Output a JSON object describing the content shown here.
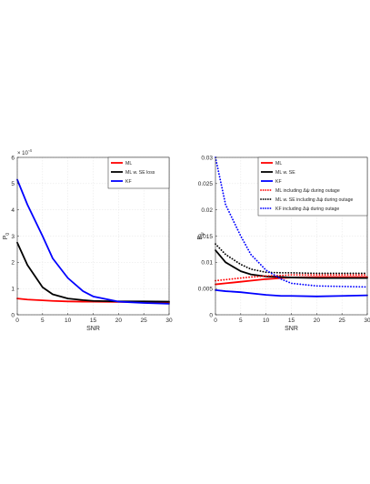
{
  "chart_data": [
    {
      "type": "line",
      "xlabel": "SNR",
      "ylabel": "P",
      "ylabel_sub": "0",
      "exponent_label": "× 10",
      "exponent_value": "-4",
      "xlim": [
        0,
        30
      ],
      "ylim": [
        0,
        6
      ],
      "xticks": [
        0,
        5,
        10,
        15,
        20,
        25,
        30
      ],
      "yticks": [
        0,
        1,
        2,
        3,
        4,
        5,
        6
      ],
      "grid": true,
      "legend_position": "top-right",
      "x": [
        0,
        2,
        5,
        7,
        10,
        13,
        15,
        20,
        25,
        30
      ],
      "series": [
        {
          "name": "ML",
          "color": "#ff0000",
          "style": "solid",
          "values": [
            0.62,
            0.58,
            0.55,
            0.53,
            0.51,
            0.5,
            0.5,
            0.49,
            0.48,
            0.47
          ]
        },
        {
          "name": "ML w. SE loss",
          "color": "#000000",
          "style": "solid",
          "values": [
            2.75,
            1.9,
            1.05,
            0.78,
            0.62,
            0.56,
            0.53,
            0.51,
            0.51,
            0.5
          ]
        },
        {
          "name": "KF",
          "color": "#0000ff",
          "style": "solid",
          "values": [
            5.15,
            4.2,
            3.0,
            2.15,
            1.4,
            0.9,
            0.7,
            0.5,
            0.45,
            0.42
          ]
        }
      ]
    },
    {
      "type": "line",
      "xlabel": "SNR",
      "ylabel": "E",
      "ylabel_sub": "ψ",
      "xlim": [
        0,
        30
      ],
      "ylim": [
        0,
        0.03
      ],
      "xticks": [
        0,
        5,
        10,
        15,
        20,
        25,
        30
      ],
      "yticks": [
        0,
        0.005,
        0.01,
        0.015,
        0.02,
        0.025,
        0.03
      ],
      "ytick_labels": [
        "0",
        "0.005",
        "0.01",
        "0.015",
        "0.02",
        "0.025",
        "0.03"
      ],
      "grid": true,
      "legend_position": "top-right",
      "x": [
        0,
        2,
        5,
        7,
        10,
        13,
        15,
        20,
        25,
        30
      ],
      "series": [
        {
          "name": "ML",
          "color": "#ff0000",
          "style": "solid",
          "values": [
            0.0058,
            0.006,
            0.0063,
            0.0065,
            0.0068,
            0.007,
            0.0071,
            0.0072,
            0.0072,
            0.0072
          ]
        },
        {
          "name": "ML w. SE",
          "color": "#000000",
          "style": "solid",
          "values": [
            0.0123,
            0.01,
            0.0083,
            0.0077,
            0.0073,
            0.0072,
            0.0071,
            0.007,
            0.007,
            0.007
          ]
        },
        {
          "name": "KF",
          "color": "#0000ff",
          "style": "solid",
          "values": [
            0.0047,
            0.0045,
            0.0043,
            0.0041,
            0.0038,
            0.0036,
            0.0036,
            0.0035,
            0.0036,
            0.0037
          ]
        },
        {
          "name": "ML including Δψ during outage",
          "color": "#ff0000",
          "style": "dotted",
          "values": [
            0.0065,
            0.0067,
            0.007,
            0.0072,
            0.0074,
            0.0075,
            0.0076,
            0.0076,
            0.0076,
            0.0076
          ]
        },
        {
          "name": "ML w. SE including Δψ during outage",
          "color": "#000000",
          "style": "dotted",
          "values": [
            0.0135,
            0.0115,
            0.0096,
            0.0087,
            0.0081,
            0.008,
            0.008,
            0.0079,
            0.0079,
            0.0079
          ]
        },
        {
          "name": "KF including Δψ during outage",
          "color": "#0000ff",
          "style": "dotted",
          "values": [
            0.03,
            0.021,
            0.015,
            0.0115,
            0.0085,
            0.0068,
            0.006,
            0.0055,
            0.0054,
            0.0053
          ]
        }
      ]
    }
  ]
}
